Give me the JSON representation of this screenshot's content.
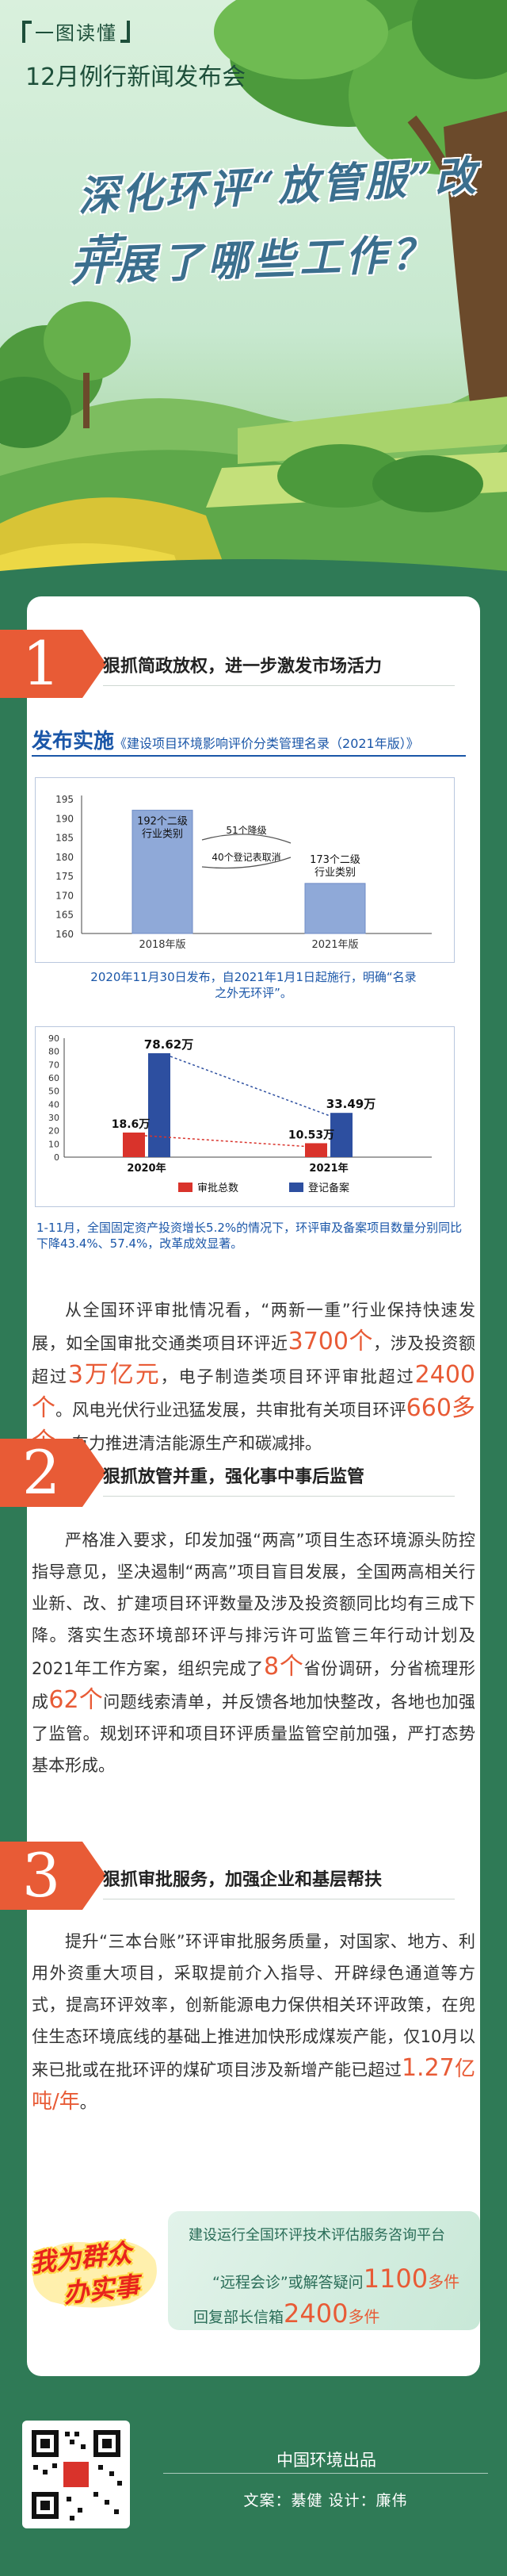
{
  "header": {
    "series_tag": "一图读懂",
    "subtitle": "12月例行新闻发布会",
    "title_line1": "深化环评“放管服”改革",
    "title_line2": "开展了哪些工作？"
  },
  "section1": {
    "number": "1",
    "title": "狠抓简政放权，进一步激发市场活力",
    "release_label": "发布实施",
    "release_doc": "《建设项目环境影响评价分类管理名录（2021年版）》",
    "chart1": {
      "type": "bar",
      "categories": [
        "2018年版",
        "2021年版"
      ],
      "values": [
        192,
        173
      ],
      "ylim": [
        160,
        195
      ],
      "yticks": [
        "195",
        "190",
        "185",
        "180",
        "175",
        "170",
        "165",
        "160"
      ],
      "bar_labels": [
        "192个二级\n行业类别",
        "173个二级\n行业类别"
      ],
      "annotations": [
        "51个降级",
        "40个登记表取消"
      ]
    },
    "chart1_caption": "2020年11月30日发布，自2021年1月1日起施行，明确“名录之外无环评”。",
    "chart2": {
      "type": "bar",
      "categories": [
        "2020年",
        "2021年"
      ],
      "series": [
        {
          "name": "审批总数",
          "values": [
            18.6
          ],
          "color": "#d9332b"
        },
        {
          "name": "登记备案",
          "values": [
            78.62
          ],
          "color": "#2d4fa0"
        }
      ],
      "series_2021": [
        10.53,
        33.49
      ],
      "labels": [
        "18.6万",
        "78.62万",
        "10.53万",
        "33.49万"
      ],
      "ylim": [
        0,
        90
      ],
      "yticks": [
        "90",
        "80",
        "70",
        "60",
        "50",
        "40",
        "30",
        "20",
        "10",
        "0"
      ]
    },
    "chart2_caption": "1-11月，全国固定资产投资增长5.2%的情况下，环评审及备案项目数量分别同比下降43.4%、57.4%，改革成效显著。",
    "para": [
      "从全国环评审批情况看，“两新一重”行业保持快速发展，如全国审批交通类项目环评近",
      "3700个",
      "，涉及投资额超过",
      "3万亿元",
      "，电子制造类项目环评审批超过",
      "2400个",
      "。风电光伏行业迅猛发展，共审批有关项目环评",
      "660多个",
      "，有力推进清洁能源生产和碳减排。"
    ]
  },
  "section2": {
    "number": "2",
    "title": "狠抓放管并重，强化事中事后监管",
    "para": [
      "严格准入要求，印发加强“两高”项目生态环境源头防控指导意见，坚决遏制“两高”项目盲目发展，全国两高相关行业新、改、扩建项目环评数量及涉及投资额同比均有三成下降。落实生态环境部环评与排污许可监管三年行动计划及2021年工作方案，组织完成了",
      "8个",
      "省份调研，分省梳理形成",
      "62个",
      "问题线索清单，并反馈各地加快整改，各地也加强了监管。规划环评和项目环评质量监管空前加强，严打态势基本形成。"
    ]
  },
  "section3": {
    "number": "3",
    "title": "狠抓审批服务，加强企业和基层帮扶",
    "para": [
      "提升“三本台账”环评审批服务质量，对国家、地方、利用外资重大项目，采取提前介入指导、开辟绿色通道等方式，提高环评效率，创新能源电力保供相关环评政策，在兜住生态环境底线的基础上推进加快形成煤炭产能，仅10月以来已批或在批环评的煤矿项目涉及新增产能已超过",
      "1.27",
      "亿吨/年",
      "。"
    ]
  },
  "service": {
    "heading": "建设运行全国环评技术评估服务咨询平台",
    "line1_prefix": "“远程会诊”或解答疑问",
    "line1_num": "1100",
    "line1_unit": "多件",
    "line2_prefix": "回复部长信箱",
    "line2_num": "2400",
    "line2_unit": "多件",
    "badge_line1": "我为群众",
    "badge_line2": "办实事"
  },
  "footer": {
    "publisher": "中国环境出品",
    "credit": "文案：綦健    设计：廉伟"
  },
  "colors": {
    "accent": "#e85b36",
    "blue": "#1a56a8",
    "green_bg": "#2f7a56"
  }
}
